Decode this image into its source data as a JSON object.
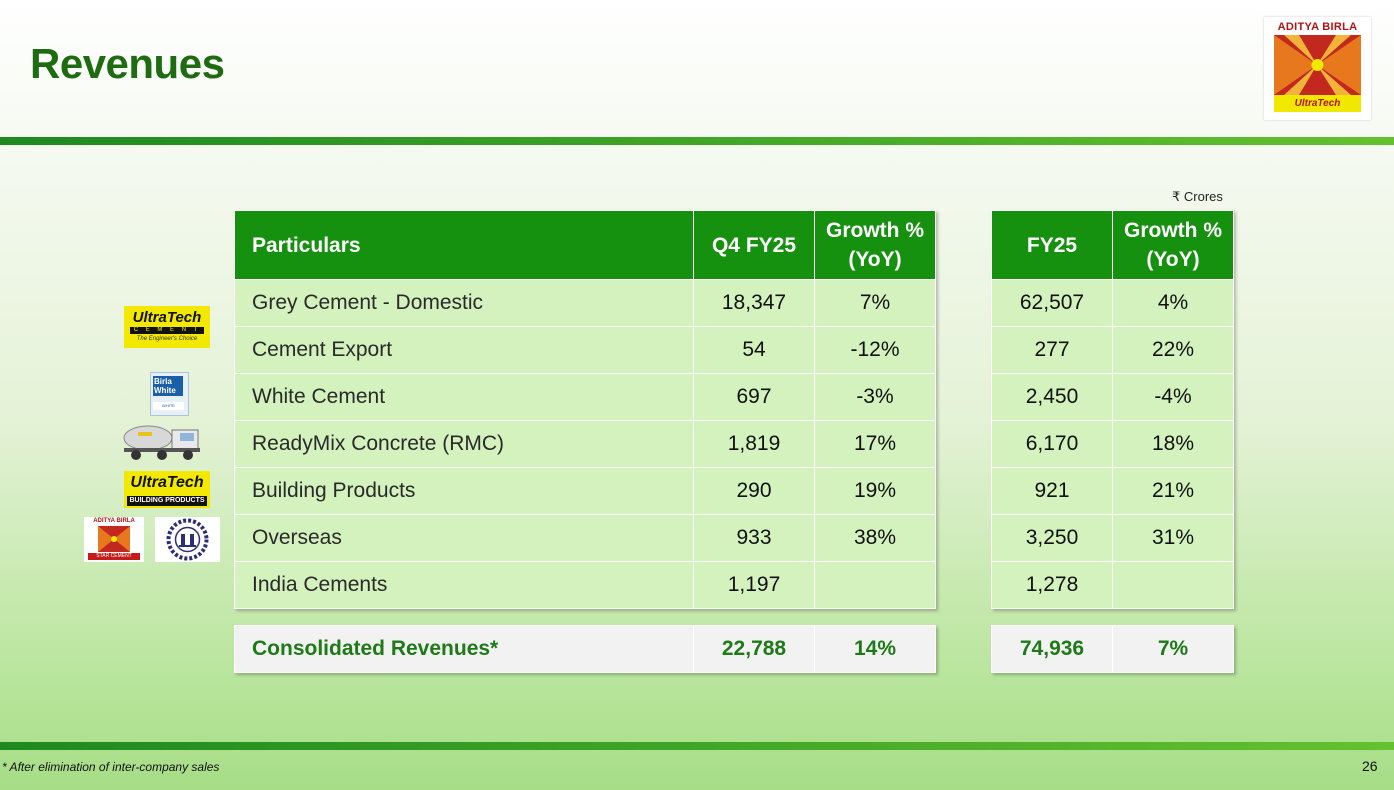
{
  "slide": {
    "title": "Revenues",
    "unit_note": "₹ Crores",
    "footnote": "* After elimination of inter-company sales",
    "page_number": "26"
  },
  "logo": {
    "top_text": "ADITYA BIRLA",
    "band_text": "UltraTech",
    "colors": {
      "red": "#b01414",
      "yellow": "#f1e800",
      "orange": "#e8781e"
    }
  },
  "brand_logos": [
    {
      "name": "ultratech-cement-logo",
      "line1": "UltraTech",
      "line2": "C E M E N T",
      "line3": "The Engineer's Choice"
    },
    {
      "name": "birla-white-logo",
      "line1": "Birla White",
      "line2": "WHITE"
    },
    {
      "name": "rmc-truck-image"
    },
    {
      "name": "ultratech-building-products-logo",
      "line1": "UltraTech",
      "line2": "BUILDING PRODUCTS"
    },
    {
      "name": "aditya-birla-star-cement-logo",
      "line1": "ADITYA BIRLA",
      "line2": "STAR CEMENT"
    },
    {
      "name": "india-cements-logo"
    }
  ],
  "table": {
    "headers": {
      "particulars": "Particulars",
      "q4": "Q4 FY25",
      "q4_growth_1": "Growth %",
      "q4_growth_2": "(YoY)",
      "fy": "FY25",
      "fy_growth_1": "Growth %",
      "fy_growth_2": "(YoY)"
    },
    "rows": [
      {
        "particular": "Grey Cement - Domestic",
        "q4": "18,347",
        "q4_growth": "7%",
        "fy": "62,507",
        "fy_growth": "4%"
      },
      {
        "particular": "Cement Export",
        "q4": "54",
        "q4_growth": "-12%",
        "fy": "277",
        "fy_growth": "22%"
      },
      {
        "particular": "White Cement",
        "q4": "697",
        "q4_growth": "-3%",
        "fy": "2,450",
        "fy_growth": "-4%"
      },
      {
        "particular": "ReadyMix Concrete (RMC)",
        "q4": "1,819",
        "q4_growth": "17%",
        "fy": "6,170",
        "fy_growth": "18%"
      },
      {
        "particular": "Building Products",
        "q4": "290",
        "q4_growth": "19%",
        "fy": "921",
        "fy_growth": "21%"
      },
      {
        "particular": "Overseas",
        "q4": "933",
        "q4_growth": "38%",
        "fy": "3,250",
        "fy_growth": "31%"
      },
      {
        "particular": "India Cements",
        "q4": "1,197",
        "q4_growth": "",
        "fy": "1,278",
        "fy_growth": ""
      }
    ],
    "total": {
      "particular": "Consolidated Revenues*",
      "q4": "22,788",
      "q4_growth": "14%",
      "fy": "74,936",
      "fy_growth": "7%"
    }
  },
  "colors": {
    "title_green": "#1e6b12",
    "header_green": "#16910f",
    "row_green": "#d3f2bd",
    "total_text_green": "#1e7a16",
    "bar_green": "#1d8a1f"
  }
}
